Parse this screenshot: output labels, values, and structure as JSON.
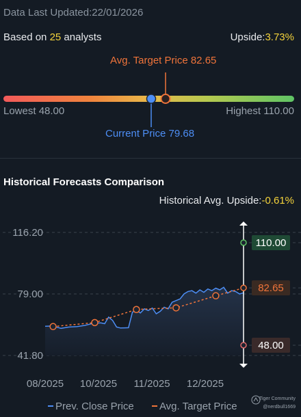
{
  "header": {
    "data_last_updated": "Data Last Updated:22/01/2026",
    "based_on_prefix": "Based on ",
    "analyst_count": "25",
    "based_on_suffix": " analysts",
    "upside_label": "Upside:",
    "upside_value": "3.73%"
  },
  "price_range": {
    "avg_target_label": "Avg. Target Price 82.65",
    "lowest_label": "Lowest 48.00",
    "highest_label": "Highest 110.00",
    "current_label": "Current Price 79.68",
    "lowest": 48.0,
    "highest": 110.0,
    "current": 79.68,
    "avg_target": 82.65
  },
  "historical": {
    "title": "Historical Forecasts Comparison",
    "avg_upside_label": "Historical Avg. Upside:",
    "avg_upside_value": "-0.61%"
  },
  "legend": {
    "prev_close": "Prev. Close Price",
    "avg_target": "Avg. Target Price"
  },
  "brand": {
    "name": "Tiger Community",
    "handle": "@nerdbull1669"
  },
  "colors": {
    "background": "#141b24",
    "close_line": "#4d8ef5",
    "target_line": "#f0743a",
    "high_badge": "#1f4a35",
    "low_badge": "#3a2a2a",
    "yellow": "#f4d33b"
  },
  "chart_data": {
    "type": "line",
    "ylim": [
      41.8,
      116.2
    ],
    "y_ticks": [
      "116.20",
      "79.00",
      "41.80"
    ],
    "x_ticks": [
      "08/2025",
      "10/2025",
      "11/2025",
      "12/2025"
    ],
    "series": [
      {
        "name": "Prev. Close Price",
        "x": [
          0,
          0.04,
          0.08,
          0.12,
          0.16,
          0.2,
          0.24,
          0.28,
          0.3,
          0.32,
          0.34,
          0.36,
          0.38,
          0.4,
          0.42,
          0.44,
          0.46,
          0.48,
          0.5,
          0.52,
          0.54,
          0.56,
          0.58,
          0.6,
          0.62,
          0.64,
          0.66,
          0.68,
          0.7,
          0.72,
          0.74,
          0.76,
          0.78,
          0.8,
          0.82,
          0.84,
          0.86,
          0.88,
          0.9,
          0.92,
          0.94,
          0.96,
          0.98,
          1.0
        ],
        "values": [
          59.5,
          59.6,
          58.2,
          59.0,
          59.3,
          60.0,
          61.2,
          61.5,
          61.0,
          65.0,
          63.0,
          59.0,
          58.4,
          58.5,
          58.6,
          68.0,
          69.0,
          67.5,
          70.0,
          69.0,
          70.5,
          67.0,
          68.5,
          71.0,
          70.0,
          74.0,
          75.0,
          76.0,
          79.0,
          80.5,
          81.0,
          79.5,
          81.5,
          80.0,
          82.0,
          81.0,
          82.5,
          81.5,
          83.0,
          79.5,
          81.0,
          80.5,
          79.0,
          79.7
        ]
      },
      {
        "name": "Avg. Target Price",
        "x": [
          0.04,
          0.25,
          0.46,
          0.66,
          0.86,
          1.0
        ],
        "values": [
          59.3,
          61.7,
          69.6,
          70.6,
          77.9,
          82.65
        ]
      }
    ],
    "markers": [
      {
        "label": "110.00",
        "value": 110.0
      },
      {
        "label": "82.65",
        "value": 82.65
      },
      {
        "label": "48.00",
        "value": 48.0
      }
    ]
  }
}
